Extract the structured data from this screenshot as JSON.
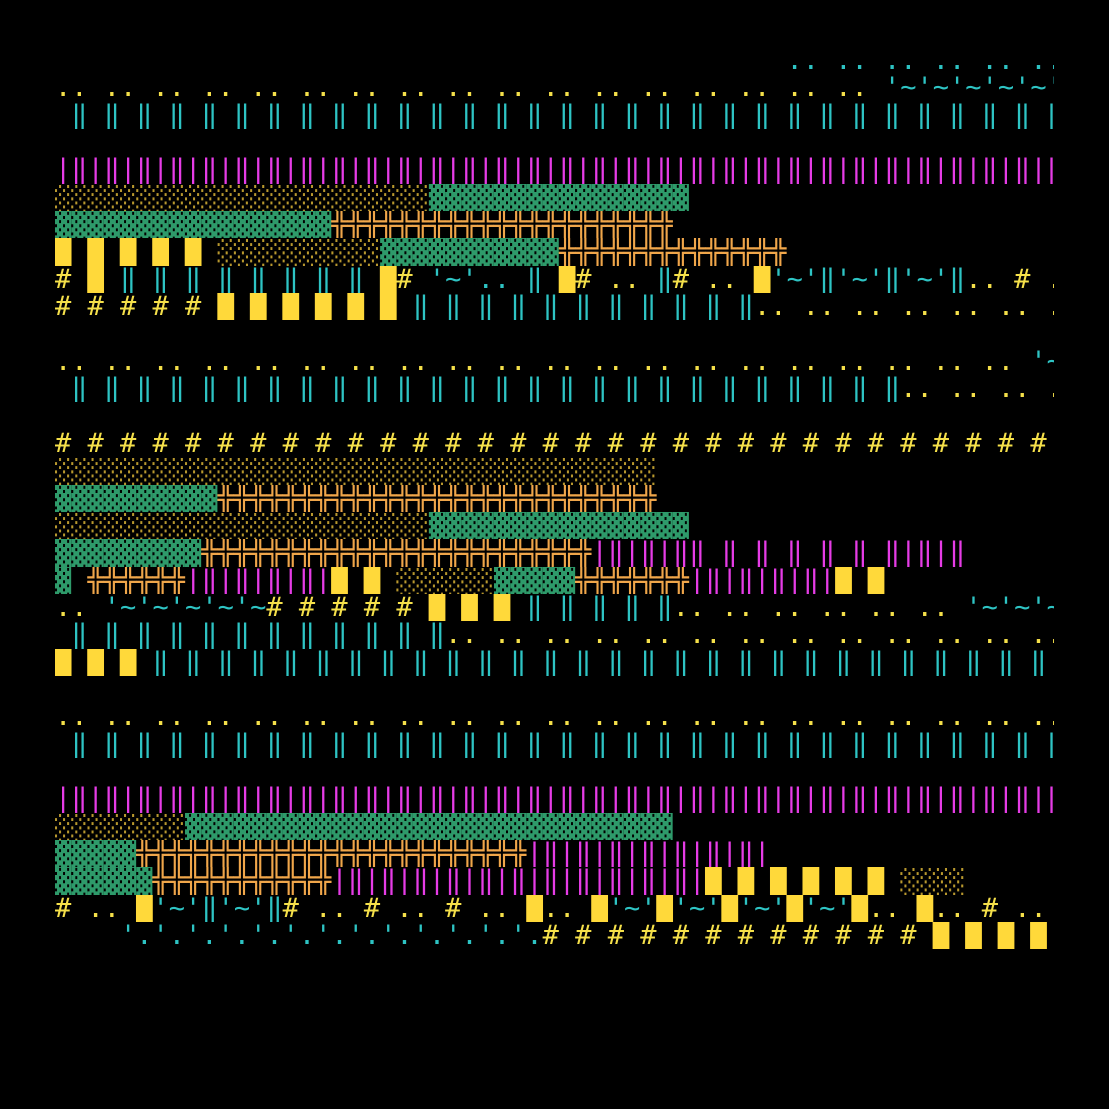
{
  "palette": {
    "background": "#000000",
    "cyan": "#2ec4c4",
    "magenta": "#e63ce6",
    "yellow": "#f5e04a",
    "sand": "#b8982e",
    "green": "#2e9a6a",
    "orange": "#f0a64a",
    "brightYellow": "#ffd93a"
  },
  "rows": [
    [
      [
        "cyan",
        "                                             .. .. .. .. .. .. .. .. .. .. .. .. ."
      ]
    ],
    [
      [
        "yellow",
        ".. .. .. .. .. .. .. .. .. .. .. .. .. .. .. .. .. "
      ],
      [
        "cyan",
        "'~'~'~'~'~'~'~'~'~'~'~'~'~'~'~'~'~'~'~'~'~'~'~'~"
      ]
    ],
    [
      [
        "cyan",
        " ‖ ‖ ‖ ‖ ‖ ‖ ‖ ‖ ‖ ‖ ‖ ‖ ‖ ‖ ‖ ‖ ‖ ‖ ‖ ‖ ‖ ‖ ‖ ‖ ‖ ‖ ‖ ‖ ‖ ‖ ‖ ‖ ‖ ‖ ‖ ‖ ‖"
      ]
    ],
    [
      [
        "cyan",
        ""
      ]
    ],
    [
      [
        "magenta",
        "|‖|‖|‖|‖|‖|‖|‖|‖|‖|‖|‖|‖|‖|‖|‖|‖|‖|‖|‖|‖|‖|‖|‖|‖|‖|‖|‖|‖|‖|‖|‖|‖|‖|‖|‖|‖|‖"
      ]
    ],
    [
      [
        "sand",
        "░░░░░░░░░░░░░░░░░░░░░░░"
      ],
      [
        "green",
        "▓▓▓▓▓▓▓▓▓▓▓▓▓▓▓▓"
      ]
    ],
    [
      [
        "green",
        "▓▓▓▓▓▓▓▓▓▓▓▓▓▓▓▓▓"
      ],
      [
        "orange",
        "╬╬╬╬╬╬╬╬╬╬╬╬╬╬╬╬╬╬╬╬╬"
      ]
    ],
    [
      [
        "brightYellow",
        "█ █ █ █ █ "
      ],
      [
        "sand",
        "░░░░░░░░░░"
      ],
      [
        "green",
        "▓▓▓▓▓▓▓▓▓▓▓"
      ],
      [
        "orange",
        "╬╬╬╬╬╬╬╬╬╬╬╬╬╬"
      ]
    ],
    [
      [
        "yellow",
        "# "
      ],
      [
        "brightYellow",
        "█ "
      ],
      [
        "cyan",
        "‖ ‖ ‖ ‖ ‖ ‖ ‖ ‖ "
      ],
      [
        "brightYellow",
        "█"
      ],
      [
        "yellow",
        "# "
      ],
      [
        "cyan",
        "'~'.. ‖ "
      ],
      [
        "brightYellow",
        "█"
      ],
      [
        "yellow",
        "# .. "
      ],
      [
        "cyan",
        "‖"
      ],
      [
        "yellow",
        "# .. "
      ],
      [
        "brightYellow",
        "█"
      ],
      [
        "cyan",
        "'~'‖'~'‖'~'‖"
      ],
      [
        "yellow",
        ".. # .. "
      ],
      [
        "cyan",
        "'~'"
      ],
      [
        "brightYellow",
        "█"
      ],
      [
        "yellow",
        ".. "
      ],
      [
        "cyan",
        "'~"
      ],
      [
        "yellow",
        "# "
      ],
      [
        "cyan",
        "‖."
      ]
    ],
    [
      [
        "yellow",
        "# # # # # "
      ],
      [
        "brightYellow",
        "█ █ █ █ █ █ "
      ],
      [
        "cyan",
        "‖ ‖ ‖ ‖ ‖ ‖ ‖ ‖ ‖ ‖ ‖"
      ],
      [
        "yellow",
        ".. .. .. .. .. .. .. .. .. .. .. .. "
      ],
      [
        "cyan",
        "'~'~'~'"
      ]
    ],
    [
      [
        "cyan",
        ""
      ]
    ],
    [
      [
        "yellow",
        ".. .. .. .. .. .. .. .. .. .. .. .. .. .. .. .. .. .. .. .. "
      ],
      [
        "cyan",
        "'~'~'~'~'~'~'~'~'~'~'~'~'~'~'~'"
      ]
    ],
    [
      [
        "cyan",
        " ‖ ‖ ‖ ‖ ‖ ‖ ‖ ‖ ‖ ‖ ‖ ‖ ‖ ‖ ‖ ‖ ‖ ‖ ‖ ‖ ‖ ‖ ‖ ‖ ‖ ‖"
      ],
      [
        "yellow",
        ".. .. .. .. .. .. .. .. .. .. .. .. ."
      ]
    ],
    [
      [
        "cyan",
        ""
      ]
    ],
    [
      [
        "yellow",
        "# # # # # # # # # # # # # # # # # # # # # # # # # # # # # # # # # # # # #"
      ]
    ],
    [
      [
        "sand",
        "░░░░░░░░░░░░░░░░░░░░░░░░░░░░░░░░░░░░░"
      ]
    ],
    [
      [
        "green",
        "▓▓▓▓▓▓▓▓▓▓"
      ],
      [
        "orange",
        "╬╬╬╬╬╬╬╬╬╬╬╬╬╬╬╬╬╬╬╬╬╬╬╬╬╬╬"
      ]
    ],
    [
      [
        "sand",
        "░░░░░░░░░░░░░░░░░░░░░░░"
      ],
      [
        "green",
        "▓▓▓▓▓▓▓▓▓▓▓▓▓▓▓▓"
      ]
    ],
    [
      [
        "green",
        "▓▓▓▓▓▓▓▓▓"
      ],
      [
        "orange",
        "╬╬╬╬╬╬╬╬╬╬╬╬╬╬╬╬╬╬╬╬╬╬╬╬"
      ],
      [
        "magenta",
        "|‖|‖|‖‖ ‖ ‖ ‖ ‖ ‖ ‖|‖|‖"
      ]
    ],
    [
      [
        "green",
        "▓ "
      ],
      [
        "orange",
        "╬╬╬╬╬╬"
      ],
      [
        "magenta",
        "|‖|‖|‖|‖|"
      ],
      [
        "brightYellow",
        "█ █ "
      ],
      [
        "sand",
        "░░░░░░"
      ],
      [
        "green",
        "▓▓▓▓▓"
      ],
      [
        "orange",
        "╬╬╬╬╬╬╬"
      ],
      [
        "magenta",
        "|‖|‖|‖|‖|"
      ],
      [
        "brightYellow",
        "█ █"
      ]
    ],
    [
      [
        "yellow",
        ".. "
      ],
      [
        "cyan",
        "'~'~'~'~'~"
      ],
      [
        "yellow",
        "# # # # # "
      ],
      [
        "brightYellow",
        "█ █ █ "
      ],
      [
        "cyan",
        "‖ ‖ ‖ ‖ ‖"
      ],
      [
        "yellow",
        ".. .. .. .. .. .. "
      ],
      [
        "cyan",
        "'~'~'~'~'~'~"
      ],
      [
        "yellow",
        "# # # # # #"
      ]
    ],
    [
      [
        "cyan",
        " ‖ ‖ ‖ ‖ ‖ ‖ ‖ ‖ ‖ ‖ ‖ ‖"
      ],
      [
        "yellow",
        ".. .. .. .. .. .. .. .. .. .. .. .. .. .. .. .. "
      ],
      [
        "cyan",
        "'~'~'~'~'~'~'~'~'"
      ]
    ],
    [
      [
        "brightYellow",
        "█ █ █ "
      ],
      [
        "cyan",
        "‖ ‖ ‖ ‖ ‖ ‖ ‖ ‖ ‖ ‖ ‖ ‖ ‖ ‖ ‖ ‖ ‖ ‖ ‖ ‖ ‖ ‖ ‖ ‖ ‖ ‖ ‖ ‖ ‖ ‖ ‖ ‖ ‖ ‖"
      ]
    ],
    [
      [
        "cyan",
        ""
      ]
    ],
    [
      [
        "yellow",
        ".. .. .. .. .. .. .. .. .. .. .. .. .. .. .. .. .. .. .. .. .. .. .. .. .. .. .. .. .. .. .. "
      ],
      [
        "cyan",
        "'~'~'~'~'"
      ]
    ],
    [
      [
        "cyan",
        " ‖ ‖ ‖ ‖ ‖ ‖ ‖ ‖ ‖ ‖ ‖ ‖ ‖ ‖ ‖ ‖ ‖ ‖ ‖ ‖ ‖ ‖ ‖ ‖ ‖ ‖ ‖ ‖ ‖ ‖ ‖ ‖ ‖ ‖ ‖ ‖ ‖"
      ]
    ],
    [
      [
        "cyan",
        ""
      ]
    ],
    [
      [
        "magenta",
        "|‖|‖|‖|‖|‖|‖|‖|‖|‖|‖|‖|‖|‖|‖|‖|‖|‖|‖|‖|‖|‖|‖|‖|‖|‖|‖|‖|‖|‖|‖|‖|‖|‖|‖|‖|‖|‖"
      ]
    ],
    [
      [
        "sand",
        "░░░░░░░░"
      ],
      [
        "green",
        "▓▓▓▓▓▓▓▓▓▓▓▓▓▓▓▓▓▓▓▓▓▓▓▓▓▓▓▓▓▓"
      ]
    ],
    [
      [
        "green",
        "▓▓▓▓▓"
      ],
      [
        "orange",
        "╬╬╬╬╬╬╬╬╬╬╬╬╬╬╬╬╬╬╬╬╬╬╬╬"
      ],
      [
        "magenta",
        "|‖|‖|‖|‖|‖|‖|‖|"
      ]
    ],
    [
      [
        "green",
        "▓▓▓▓▓▓"
      ],
      [
        "orange",
        "╬╬╬╬╬╬╬╬╬╬╬"
      ],
      [
        "magenta",
        "|‖|‖|‖|‖|‖|‖|‖|‖|‖|‖|‖|"
      ],
      [
        "brightYellow",
        "█ █ █ █ █ █ "
      ],
      [
        "sand",
        "░░░░"
      ]
    ],
    [
      [
        "yellow",
        "# .. "
      ],
      [
        "brightYellow",
        "█"
      ],
      [
        "cyan",
        "'~'‖'~'‖"
      ],
      [
        "yellow",
        "# .. # .. # .. "
      ],
      [
        "brightYellow",
        "█"
      ],
      [
        "yellow",
        ".. "
      ],
      [
        "brightYellow",
        "█"
      ],
      [
        "cyan",
        "'~'"
      ],
      [
        "brightYellow",
        "█"
      ],
      [
        "cyan",
        "'~'"
      ],
      [
        "brightYellow",
        "█"
      ],
      [
        "cyan",
        "'~'"
      ],
      [
        "brightYellow",
        "█"
      ],
      [
        "cyan",
        "'~'"
      ],
      [
        "brightYellow",
        "█"
      ],
      [
        "yellow",
        ".. "
      ],
      [
        "brightYellow",
        "█"
      ],
      [
        "yellow",
        ".. # .. # .. # "
      ],
      [
        "cyan",
        "‖'~'‖'~'"
      ]
    ],
    [
      [
        "cyan",
        "    '.'.'.'.'.'.'.'.'.'.'.'.'."
      ],
      [
        "yellow",
        "# # # # # # # # # # # # "
      ],
      [
        "brightYellow",
        "█ █ █ █ █ █ "
      ],
      [
        "cyan",
        "‖ ‖ ‖ ‖ ‖ ‖ ‖"
      ]
    ]
  ]
}
